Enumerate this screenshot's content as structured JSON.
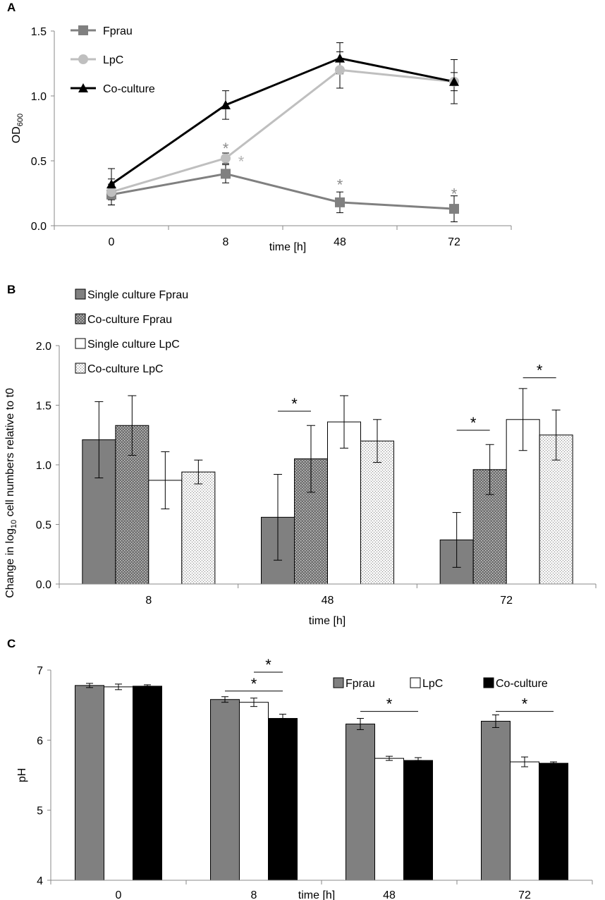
{
  "colors": {
    "fprau": "#808080",
    "lpc": "#bfbfbf",
    "coculture": "#000000",
    "bar_dark": "#808080",
    "bar_white": "#ffffff",
    "bar_black": "#000000",
    "axis": "#888888",
    "star_grey": "#8c8c8c",
    "star_light": "#b3b3b3"
  },
  "chart_data": [
    {
      "panel": "A",
      "type": "line",
      "xlabel": "time [h]",
      "ylabel_main": "OD",
      "ylabel_sub": "600",
      "categories": [
        "0",
        "8",
        "48",
        "72"
      ],
      "ylim": [
        0,
        1.5
      ],
      "yticks": [
        "0.0",
        "0.5",
        "1.0",
        "1.5"
      ],
      "legend_position": "top-left",
      "series": [
        {
          "name": "Fprau",
          "marker": "square",
          "values": [
            0.24,
            0.4,
            0.18,
            0.13
          ],
          "errors": [
            0.08,
            0.07,
            0.08,
            0.1
          ]
        },
        {
          "name": "LpC",
          "marker": "circle",
          "values": [
            0.26,
            0.52,
            1.2,
            1.11
          ],
          "errors": [
            0.1,
            0.04,
            0.14,
            0.07
          ]
        },
        {
          "name": "Co-culture",
          "marker": "triangle",
          "values": [
            0.32,
            0.93,
            1.29,
            1.11
          ],
          "errors": [
            0.12,
            0.11,
            0.12,
            0.17
          ]
        }
      ],
      "annotations": [
        {
          "text": "*",
          "category": "8",
          "offset": 0,
          "value": 0.62,
          "color": "grey"
        },
        {
          "text": "*",
          "category": "8",
          "offset": 1,
          "value": 0.52,
          "color": "light"
        },
        {
          "text": "*",
          "category": "48",
          "offset": 0,
          "value": 0.34,
          "color": "grey"
        },
        {
          "text": "*",
          "category": "72",
          "offset": 0,
          "value": 0.27,
          "color": "grey"
        }
      ]
    },
    {
      "panel": "B",
      "type": "bar",
      "xlabel": "time [h]",
      "ylabel": "Change in log10 cell numbers relative to t0",
      "ylabel_pre": "Change in log",
      "ylabel_sub": "10",
      "ylabel_post": " cell numbers relative to t0",
      "categories": [
        "8",
        "48",
        "72"
      ],
      "ylim": [
        0,
        2.0
      ],
      "yticks": [
        "0.0",
        "0.5",
        "1.0",
        "1.5",
        "2.0"
      ],
      "legend_position": "top-left",
      "series": [
        {
          "name": "Single culture Fprau",
          "fill": "solid-grey",
          "values": [
            1.21,
            0.56,
            0.37
          ],
          "errors": [
            0.32,
            0.36,
            0.23
          ]
        },
        {
          "name": "Co-culture Fprau",
          "fill": "crosshatch",
          "values": [
            1.33,
            1.05,
            0.96
          ],
          "errors": [
            0.25,
            0.28,
            0.21
          ]
        },
        {
          "name": "Single culture LpC",
          "fill": "white",
          "values": [
            0.87,
            1.36,
            1.38
          ],
          "errors": [
            0.24,
            0.22,
            0.26
          ]
        },
        {
          "name": "Co-culture LpC",
          "fill": "dots",
          "values": [
            0.94,
            1.2,
            1.25
          ],
          "errors": [
            0.1,
            0.18,
            0.21
          ]
        }
      ],
      "significance": [
        {
          "category": "48",
          "from": 0,
          "to": 1,
          "value": 1.45,
          "text": "*"
        },
        {
          "category": "72",
          "from": 0,
          "to": 1,
          "value": 1.29,
          "text": "*"
        },
        {
          "category": "72",
          "from": 2,
          "to": 3,
          "value": 1.73,
          "text": "*"
        }
      ]
    },
    {
      "panel": "C",
      "type": "bar",
      "xlabel": "time [h]",
      "ylabel": "pH",
      "categories": [
        "0",
        "8",
        "48",
        "72"
      ],
      "ylim": [
        4,
        7
      ],
      "yticks": [
        "4",
        "5",
        "6",
        "7"
      ],
      "legend_position": "top-right",
      "series": [
        {
          "name": "Fprau",
          "fill": "solid-grey",
          "values": [
            6.78,
            6.58,
            6.23,
            6.27
          ],
          "errors": [
            0.03,
            0.04,
            0.08,
            0.09
          ]
        },
        {
          "name": "LpC",
          "fill": "white",
          "values": [
            6.76,
            6.54,
            5.74,
            5.69
          ],
          "errors": [
            0.04,
            0.06,
            0.03,
            0.07
          ]
        },
        {
          "name": "Co-culture",
          "fill": "black",
          "values": [
            6.77,
            6.31,
            5.71,
            5.67
          ],
          "errors": [
            0.02,
            0.06,
            0.04,
            0.02
          ]
        }
      ],
      "significance": [
        {
          "category": "8",
          "from": 1,
          "to": 2,
          "value": 6.97,
          "text": "*"
        },
        {
          "category": "8",
          "from": 0,
          "to": 2,
          "value": 6.7,
          "text": "*"
        },
        {
          "category": "48",
          "from": 0,
          "to": 2,
          "value": 6.41,
          "text": "*"
        },
        {
          "category": "72",
          "from": 0,
          "to": 2,
          "value": 6.41,
          "text": "*"
        }
      ]
    }
  ]
}
